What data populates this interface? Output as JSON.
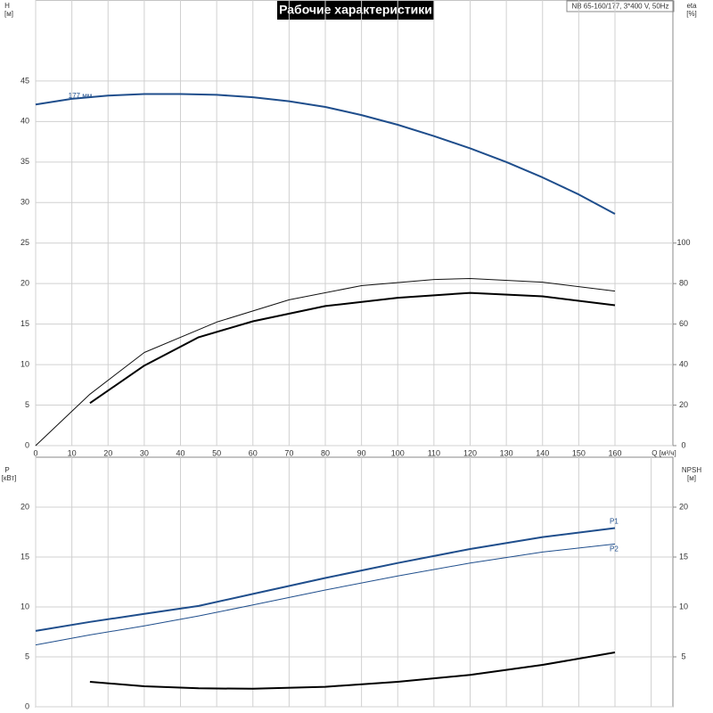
{
  "chart_data": [
    {
      "type": "line",
      "title": "Рабочие характеристики",
      "subtitle": "NB 65-160/177, 3*400 V, 50Hz",
      "ylabel": "H",
      "ylabel_unit": "[м]",
      "y2label": "eta",
      "y2label_unit": "[%]",
      "xlabel": "Q [м³/ч]",
      "xlim": [
        0,
        176
      ],
      "xticks": [
        0,
        10,
        20,
        30,
        40,
        50,
        60,
        70,
        80,
        90,
        100,
        110,
        120,
        130,
        140,
        150,
        160
      ],
      "ylim": [
        0,
        55
      ],
      "yticks": [
        0,
        5,
        10,
        15,
        20,
        25,
        30,
        35,
        40,
        45
      ],
      "y2lim": [
        0,
        220
      ],
      "y2ticks": [
        0,
        20,
        40,
        60,
        80,
        100
      ],
      "grid": true,
      "series": [
        {
          "name": "177 мм",
          "label_position": "start",
          "color": "#1f4e8c",
          "line_width": 2,
          "x": [
            0,
            10,
            20,
            30,
            40,
            50,
            60,
            70,
            80,
            90,
            100,
            110,
            120,
            130,
            140,
            150,
            160
          ],
          "values": [
            42.1,
            42.8,
            43.2,
            43.4,
            43.4,
            43.3,
            43.0,
            42.5,
            41.8,
            40.8,
            39.6,
            38.2,
            36.7,
            35.0,
            33.1,
            31.0,
            28.6
          ]
        },
        {
          "axis": "y2",
          "color": "#111111",
          "line_width": 1,
          "x": [
            0,
            15,
            30,
            50,
            70,
            90,
            110,
            120,
            140,
            160
          ],
          "values": [
            0,
            25.4,
            46,
            61,
            72,
            79,
            82,
            82.5,
            80.7,
            76.3
          ]
        },
        {
          "axis": "y2",
          "color": "#000000",
          "line_width": 2,
          "x": [
            15,
            30,
            45,
            60,
            80,
            100,
            120,
            140,
            160
          ],
          "values": [
            21,
            39.5,
            53.5,
            61.4,
            68.9,
            73,
            75.4,
            73.7,
            69.3
          ]
        }
      ]
    },
    {
      "type": "line",
      "ylabel": "P",
      "ylabel_unit": "[кВт]",
      "y2label": "NPSH",
      "y2label_unit": "[м]",
      "xlim": [
        0,
        176
      ],
      "xgrid": [
        0,
        10,
        20,
        30,
        40,
        50,
        60,
        70,
        80,
        90,
        100,
        110,
        120,
        130,
        140,
        150,
        160,
        170
      ],
      "ylim": [
        0,
        25
      ],
      "yticks": [
        0,
        5,
        10,
        15,
        20
      ],
      "y2lim": [
        0,
        25
      ],
      "y2ticks": [
        5,
        10,
        15,
        20
      ],
      "grid": true,
      "series": [
        {
          "name": "P1",
          "label_position": "end",
          "color": "#1f4e8c",
          "line_width": 2,
          "x": [
            0,
            15,
            30,
            45,
            60,
            80,
            100,
            120,
            140,
            160
          ],
          "values": [
            7.6,
            8.5,
            9.3,
            10.1,
            11.3,
            12.9,
            14.4,
            15.8,
            17.0,
            17.9
          ]
        },
        {
          "name": "P2",
          "label_position": "end",
          "color": "#1f4e8c",
          "line_width": 1,
          "x": [
            0,
            15,
            30,
            45,
            60,
            80,
            100,
            120,
            140,
            160
          ],
          "values": [
            6.2,
            7.2,
            8.1,
            9.1,
            10.2,
            11.7,
            13.1,
            14.4,
            15.5,
            16.3
          ]
        },
        {
          "axis": "y2",
          "color": "#000000",
          "line_width": 2,
          "x": [
            15,
            30,
            45,
            60,
            80,
            100,
            120,
            140,
            160
          ],
          "values": [
            2.5,
            2.05,
            1.85,
            1.8,
            2.0,
            2.5,
            3.2,
            4.2,
            5.45
          ]
        }
      ]
    }
  ]
}
